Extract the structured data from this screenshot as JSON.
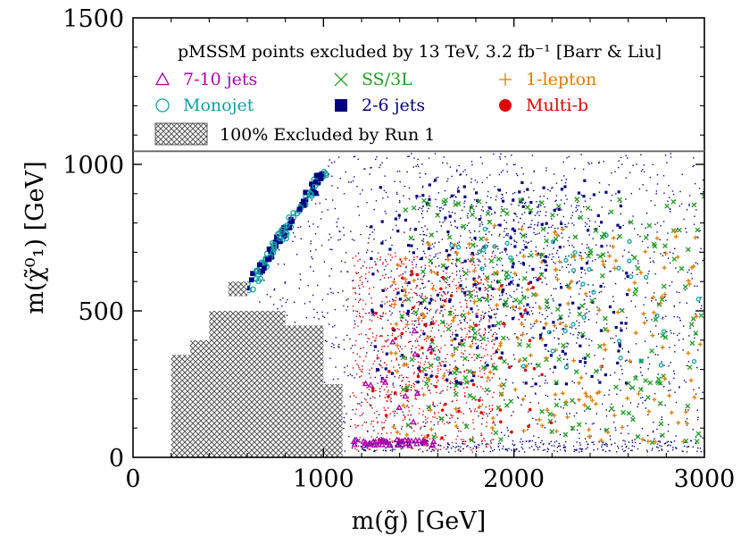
{
  "chart_data": {
    "type": "scatter",
    "legend_title": "pMSSM points excluded by 13 TeV, 3.2 fb⁻¹ [Barr & Liu]",
    "xlabel": "m(g̃) [GeV]",
    "ylabel": "m(χ̃⁰₁) [GeV]",
    "xlim": [
      0,
      3000
    ],
    "ylim": [
      0,
      1500
    ],
    "x_ticks": [
      0,
      1000,
      2000,
      3000
    ],
    "y_ticks": [
      0,
      500,
      1000,
      1500
    ],
    "x_tick_labels": [
      "0",
      "1000",
      "2000",
      "3000"
    ],
    "y_tick_labels": [
      "0",
      "500",
      "1000",
      "1500"
    ],
    "legend_separator_y": 1045,
    "series": [
      {
        "name": "7-10 jets",
        "marker": "triangle-open",
        "color": "#b000b0"
      },
      {
        "name": "SS/3L",
        "marker": "cross",
        "color": "#1e9e1e"
      },
      {
        "name": "1-lepton",
        "marker": "plus",
        "color": "#e07b00"
      },
      {
        "name": "Monojet",
        "marker": "circle-open",
        "color": "#10a0a0"
      },
      {
        "name": "2-6 jets",
        "marker": "square",
        "color": "#000080"
      },
      {
        "name": "Multi-b",
        "marker": "dot",
        "color": "#e00000"
      }
    ],
    "excluded_region": {
      "label": "100% Excluded by Run 1",
      "polygon": [
        [
          200,
          0
        ],
        [
          1100,
          0
        ],
        [
          1100,
          250
        ],
        [
          1000,
          250
        ],
        [
          1000,
          450
        ],
        [
          800,
          450
        ],
        [
          800,
          500
        ],
        [
          400,
          500
        ],
        [
          400,
          400
        ],
        [
          300,
          400
        ],
        [
          300,
          350
        ],
        [
          200,
          350
        ]
      ],
      "island": [
        [
          500,
          550
        ],
        [
          600,
          550
        ],
        [
          600,
          600
        ],
        [
          500,
          600
        ]
      ]
    },
    "note": "Scatter cloud of several thousand pMSSM model points; drawn procedurally from the density description below.",
    "density": {
      "diagonal_band": {
        "x_from": 600,
        "x_to": 1000,
        "y_from": 600,
        "y_to": 1000
      },
      "bulk_region": {
        "x_min": 650,
        "x_max": 3000,
        "y_min": 20,
        "y_max": 1050
      }
    }
  }
}
